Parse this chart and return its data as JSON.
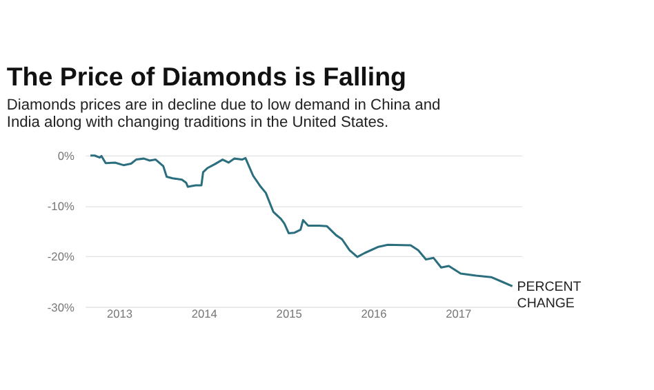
{
  "chart_data": {
    "type": "line",
    "title": "The Price of Diamonds is Falling",
    "subtitle": "Diamonds prices are in decline due to low demand in China and India along with changing traditions in the United States.",
    "x": [
      2012.66,
      2012.71,
      2012.77,
      2012.79,
      2012.84,
      2012.95,
      2013.05,
      2013.14,
      2013.2,
      2013.29,
      2013.36,
      2013.43,
      2013.52,
      2013.56,
      2013.63,
      2013.74,
      2013.79,
      2013.81,
      2013.9,
      2013.97,
      2013.99,
      2014.04,
      2014.13,
      2014.22,
      2014.29,
      2014.36,
      2014.45,
      2014.49,
      2014.58,
      2014.67,
      2014.73,
      2014.82,
      2014.91,
      2014.95,
      2015.0,
      2015.07,
      2015.14,
      2015.17,
      2015.23,
      2015.36,
      2015.45,
      2015.56,
      2015.63,
      2015.72,
      2015.81,
      2015.9,
      2016.06,
      2016.17,
      2016.44,
      2016.53,
      2016.62,
      2016.71,
      2016.8,
      2016.89,
      2017.03,
      2017.21,
      2017.39,
      2017.53,
      2017.64
    ],
    "series": [
      {
        "color": "#2b6e7e",
        "values": [
          0.0,
          0.0,
          -0.4,
          -0.1,
          -1.5,
          -1.4,
          -1.9,
          -1.6,
          -0.8,
          -0.6,
          -1.0,
          -0.8,
          -2.1,
          -4.2,
          -4.5,
          -4.8,
          -5.4,
          -6.2,
          -5.9,
          -5.9,
          -3.3,
          -2.5,
          -1.7,
          -0.8,
          -1.4,
          -0.6,
          -0.8,
          -0.5,
          -4.0,
          -6.2,
          -7.4,
          -11.2,
          -12.6,
          -13.5,
          -15.4,
          -15.3,
          -14.7,
          -12.8,
          -13.9,
          -13.9,
          -14.0,
          -15.8,
          -16.6,
          -18.8,
          -20.1,
          -19.3,
          -18.1,
          -17.7,
          -17.8,
          -18.8,
          -20.6,
          -20.3,
          -22.2,
          -21.9,
          -23.4,
          -23.8,
          -24.1,
          -25.1,
          -25.9
        ]
      }
    ],
    "xlim": [
      2012.6,
      2017.75
    ],
    "xticks": [
      2013,
      2014,
      2015,
      2016,
      2017
    ],
    "ylim": [
      -30,
      0
    ],
    "yticks": [
      {
        "value": 0,
        "label": "0%"
      },
      {
        "value": -10,
        "label": "-10%"
      },
      {
        "value": -20,
        "label": "-20%"
      },
      {
        "value": -30,
        "label": "-30%"
      }
    ],
    "grid": "y",
    "marker": "none",
    "line_style": "solid",
    "annotations": [
      {
        "text": "PERCENT CHANGE",
        "x": 2017.64,
        "y": -25.9
      }
    ]
  }
}
